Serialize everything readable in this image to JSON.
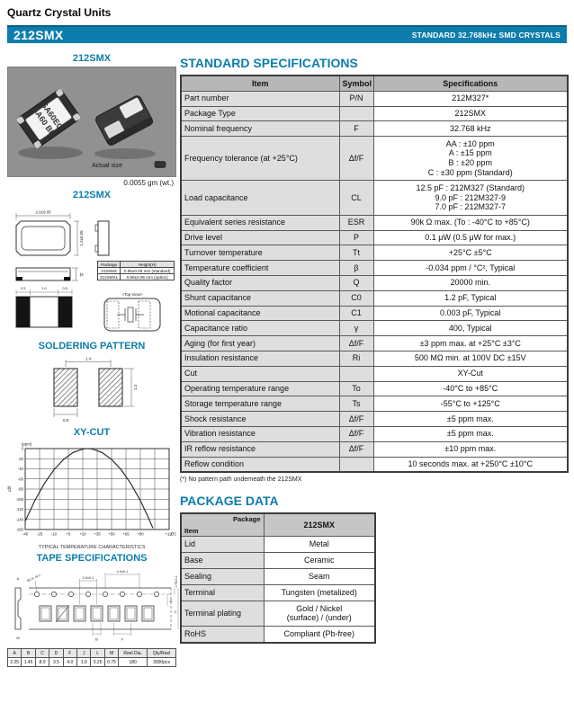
{
  "page": {
    "eyebrow": "Quartz Crystal Units",
    "banner": {
      "model": "212SMX",
      "tagline": "STANDARD 32.768kHz SMD CRYSTALS"
    }
  },
  "colors": {
    "accent": "#0d7dad",
    "banner_bg": "#0d7dad",
    "table_header_bg": "#b7b7b7",
    "row_label_bg": "#dedede"
  },
  "photo": {
    "title": "212SMX",
    "marking": [
      "SA60EG",
      "SA60 BK"
    ],
    "actual_size_label": "Actual size",
    "weight": "0.0055 gm (wt.)"
  },
  "drawing": {
    "title": "212SMX",
    "dim_width": "2.0±0.05",
    "dim_height": "1.2±0.05",
    "dim_h_label": "H",
    "pad_dims": [
      "0.5",
      "1.0",
      "0.5"
    ],
    "top_view_label": "<Top View>",
    "height_table": {
      "headers": [
        "Package",
        "Height(H)"
      ],
      "rows": [
        [
          "212SMX",
          "0.55±0.05 mm (standard)"
        ],
        [
          "212SMXL",
          "0.90±0.05 mm (option)"
        ]
      ]
    }
  },
  "soldering": {
    "title": "SOLDERING PATTERN",
    "dim_pitch": "1.4",
    "dim_height": "1.3",
    "dim_width": "0.8"
  },
  "xycut": {
    "title": "XY-CUT"
  },
  "chart_data": {
    "type": "line",
    "title": "XY-CUT",
    "ylabel_top": "(ppm)",
    "ylabel_side": "Δf/f",
    "x_unit": "(°C)",
    "caption": "TYPICAL TEMPERATURE CHARACTERISTICS",
    "xlim": [
      -40,
      110
    ],
    "ylim": [
      -160,
      0
    ],
    "x_ticks": [
      -40,
      -25,
      -10,
      5,
      20,
      35,
      50,
      65,
      80,
      95,
      110
    ],
    "x_tick_labels": [
      "-40",
      "-25",
      "-10",
      "+5",
      "+20",
      "+35",
      "+50",
      "+65",
      "+80",
      "",
      "+110"
    ],
    "y_ticks": [
      0,
      -20,
      -40,
      -60,
      -80,
      -100,
      -120,
      -140,
      -160
    ],
    "turnover_c": 25,
    "beta_ppm_per_c2": -0.034,
    "series": [
      {
        "name": "Δf/f",
        "x": [
          -40,
          -30,
          -20,
          -10,
          0,
          10,
          20,
          25,
          30,
          40,
          50,
          60,
          70,
          80,
          88,
          93
        ],
        "y": [
          -143.7,
          -102.9,
          -68.9,
          -41.7,
          -21.3,
          -7.7,
          -0.9,
          0,
          -0.9,
          -7.7,
          -21.3,
          -41.7,
          -68.9,
          -102.9,
          -135.0,
          -157.2
        ]
      }
    ],
    "grid": true,
    "legend": "none"
  },
  "tape": {
    "title": "TAPE SPECIFICATIONS",
    "labels": {
      "hole_pitch": "4.0±0.1",
      "pocket_pitch": "2.0±0.1",
      "edge_margin": "1.75±0.1",
      "hole_dia": "Ø1.5 +0.1",
      "a": "A",
      "b": "B",
      "c": "C",
      "d": "D",
      "f": "F",
      "w": "W"
    },
    "table": {
      "headers": [
        "A",
        "B",
        "C",
        "D",
        "F",
        "J",
        "L",
        "M",
        "Reel Dia.",
        "Qty/Reel"
      ],
      "values": [
        "2.25",
        "1.45",
        "8.0",
        "3.5",
        "4.0",
        "1.0",
        "0.25",
        "0.75",
        "180",
        "3000pcs"
      ]
    }
  },
  "specs": {
    "title": "STANDARD SPECIFICATIONS",
    "headers": [
      "Item",
      "Symbol",
      "Specifications"
    ],
    "footnote": "(*) No pattern path underneath the 212SMX",
    "rows": [
      {
        "item": "Part number",
        "symbol": "P/N",
        "spec": [
          "212M327*"
        ]
      },
      {
        "item": "Package Type",
        "symbol": "",
        "spec": [
          "212SMX"
        ]
      },
      {
        "item": "Nominal frequency",
        "symbol": "F",
        "spec": [
          "32.768 kHz"
        ]
      },
      {
        "item": "Frequency tolerance (at +25°C)",
        "symbol": "Δf/F",
        "spec": [
          "AA : ±10 ppm",
          "A : ±15 ppm",
          "B : ±20 ppm",
          "C : ±30 ppm (Standard)"
        ]
      },
      {
        "item": "Load capacitance",
        "symbol": "CL",
        "spec": [
          "12.5 pF : 212M327 (Standard)",
          "9.0 pF : 212M327-9",
          "7.0 pF : 212M327-7"
        ]
      },
      {
        "item": "Equivalent series resistance",
        "symbol": "ESR",
        "spec": [
          "90k Ω max. (To : -40°C to +85°C)"
        ]
      },
      {
        "item": "Drive level",
        "symbol": "P",
        "spec": [
          "0.1 μW (0.5 μW for max.)"
        ]
      },
      {
        "item": "Turnover temperature",
        "symbol": "Tt",
        "spec": [
          "+25°C ±5°C"
        ]
      },
      {
        "item": "Temperature coefficient",
        "symbol": "β",
        "spec": [
          "-0.034 ppm / °C², Typical"
        ]
      },
      {
        "item": "Quality factor",
        "symbol": "Q",
        "spec": [
          "20000 min."
        ]
      },
      {
        "item": "Shunt capacitance",
        "symbol": "C0",
        "spec": [
          "1.2 pF, Typical"
        ]
      },
      {
        "item": "Motional capacitance",
        "symbol": "C1",
        "spec": [
          "0.003 pF, Typical"
        ]
      },
      {
        "item": "Capacitance ratio",
        "symbol": "γ",
        "spec": [
          "400, Typical"
        ]
      },
      {
        "item": "Aging (for first year)",
        "symbol": "Δf/F",
        "spec": [
          "±3 ppm max. at +25°C ±3°C"
        ]
      },
      {
        "item": "Insulation resistance",
        "symbol": "Ri",
        "spec": [
          "500 MΩ min. at 100V DC ±15V"
        ]
      },
      {
        "item": "Cut",
        "symbol": "",
        "spec": [
          "XY-Cut"
        ]
      },
      {
        "item": "Operating temperature range",
        "symbol": "To",
        "spec": [
          "-40°C to +85°C"
        ]
      },
      {
        "item": "Storage temperature range",
        "symbol": "Ts",
        "spec": [
          "-55°C to +125°C"
        ]
      },
      {
        "item": "Shock resistance",
        "symbol": "Δf/F",
        "spec": [
          "±5 ppm max."
        ]
      },
      {
        "item": "Vibration resistance",
        "symbol": "Δf/F",
        "spec": [
          "±5 ppm max."
        ]
      },
      {
        "item": "IR reflow resistance",
        "symbol": "Δf/F",
        "spec": [
          "±10 ppm max."
        ]
      },
      {
        "item": "Reflow condition",
        "symbol": "",
        "spec": [
          "10 seconds max. at +250°C ±10°C"
        ]
      }
    ]
  },
  "package_data": {
    "title": "PACKAGE DATA",
    "corner_top": "Package",
    "corner_bottom": "Item",
    "column_header": "212SMX",
    "rows": [
      {
        "item": "Lid",
        "value": [
          "Metal"
        ]
      },
      {
        "item": "Base",
        "value": [
          "Ceramic"
        ]
      },
      {
        "item": "Sealing",
        "value": [
          "Seam"
        ]
      },
      {
        "item": "Terminal",
        "value": [
          "Tungsten (metalized)"
        ]
      },
      {
        "item": "Terminal plating",
        "value": [
          "Gold / Nickel",
          "(surface) / (under)"
        ]
      },
      {
        "item": "RoHS",
        "value": [
          "Compliant (Pb-free)"
        ]
      }
    ]
  }
}
